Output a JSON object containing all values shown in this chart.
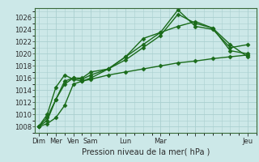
{
  "title": "",
  "xlabel": "Pression niveau de la mer( hPa )",
  "ylabel": "",
  "bg_color": "#cce8e8",
  "grid_color": "#aacfcf",
  "line_color": "#1a6b1a",
  "marker": "D",
  "markersize": 2.5,
  "linewidth": 1.0,
  "ylim": [
    1007,
    1027.5
  ],
  "yticks": [
    1008,
    1010,
    1012,
    1014,
    1016,
    1018,
    1020,
    1022,
    1024,
    1026
  ],
  "series": [
    {
      "x": [
        0,
        0.5,
        1,
        1.5,
        2,
        2.5,
        3,
        4,
        5,
        6,
        7,
        8,
        9,
        10,
        11,
        12
      ],
      "y": [
        1008.0,
        1009.5,
        1012.5,
        1015.5,
        1016.0,
        1016.0,
        1017.0,
        1017.5,
        1019.5,
        1021.5,
        1023.5,
        1027.2,
        1024.5,
        1024.0,
        1021.0,
        1021.5
      ]
    },
    {
      "x": [
        0,
        0.5,
        1,
        1.5,
        2,
        2.5,
        3,
        4,
        5,
        6,
        7,
        8,
        9,
        10,
        11,
        12
      ],
      "y": [
        1008.0,
        1009.0,
        1012.5,
        1015.0,
        1016.0,
        1015.8,
        1016.5,
        1017.5,
        1019.0,
        1021.0,
        1023.0,
        1026.5,
        1025.0,
        1024.2,
        1020.5,
        1020.0
      ]
    },
    {
      "x": [
        0,
        0.5,
        1,
        1.5,
        2,
        2.5,
        3,
        4,
        5,
        6,
        7,
        8,
        9,
        10,
        11,
        12
      ],
      "y": [
        1008.0,
        1010.0,
        1014.5,
        1016.5,
        1015.8,
        1015.5,
        1016.0,
        1017.5,
        1019.5,
        1022.5,
        1023.5,
        1024.5,
        1025.3,
        1024.2,
        1021.5,
        1019.5
      ]
    },
    {
      "x": [
        0,
        0.5,
        1,
        1.5,
        2,
        2.5,
        3,
        4,
        5,
        6,
        7,
        8,
        9,
        10,
        11,
        12
      ],
      "y": [
        1008.0,
        1008.5,
        1009.5,
        1011.5,
        1015.0,
        1015.5,
        1015.8,
        1016.5,
        1017.0,
        1017.5,
        1018.0,
        1018.5,
        1018.8,
        1019.2,
        1019.5,
        1019.8
      ]
    }
  ],
  "xtick_positions": [
    0,
    1,
    2,
    3,
    5,
    7,
    9,
    12
  ],
  "xtick_labels_full": [
    "Dim",
    "Mer",
    "Ven",
    "Sam",
    "Lun",
    "Mar",
    "",
    "Jeu"
  ],
  "xlabel_fontsize": 7,
  "tick_fontsize": 6
}
